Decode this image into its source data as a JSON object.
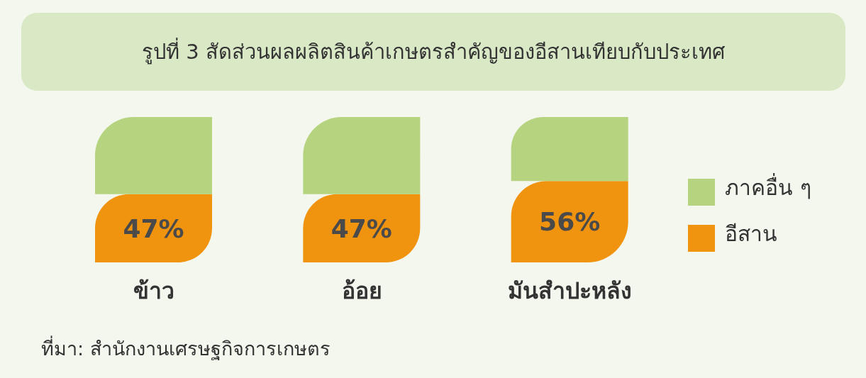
{
  "chart_data": {
    "type": "bar",
    "title": "รูปที่ 3 สัดส่วนผลผลิตสินค้าเกษตรสำคัญของอีสานเทียบกับประเทศ",
    "categories": [
      "ข้าว",
      "อ้อย",
      "มันสำปะหลัง"
    ],
    "stacked": true,
    "ylim": [
      0,
      100
    ],
    "series": [
      {
        "name": "อีสาน",
        "color": "#f0930f",
        "values": [
          47,
          47,
          56
        ],
        "value_labels": [
          "47%",
          "47%",
          "56%"
        ]
      },
      {
        "name": "ภาคอื่น ๆ",
        "color": "#b6d47f",
        "values": [
          53,
          53,
          44
        ]
      }
    ],
    "legend": "right",
    "annotations": [
      "ที่มา: สำนักงานเศรษฐกิจการเกษตร"
    ]
  }
}
